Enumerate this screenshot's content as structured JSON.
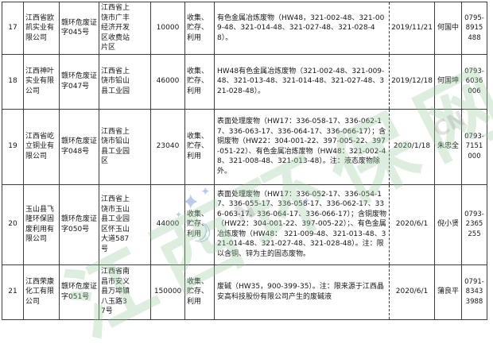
{
  "table": {
    "rows": [
      {
        "no": "17",
        "company": "江西省欧凯实业有限公司",
        "permit": "赣环危废证字045号",
        "address": "江西省上饶市广丰经济开发区收费站片区",
        "quantity": "10000",
        "operation": "收集、贮存、利用",
        "waste": "有色金属冶炼废物（HW48，321-002-48、321-009-48、321-014-48、321-027-48、321-028-48）。",
        "date": "2019/11/21",
        "contact": "何国中",
        "phone": "0795-8915488"
      },
      {
        "no": "18",
        "company": "江西神叶实业有限公司",
        "permit": "赣环危废证字047号",
        "address": "江西省上饶市铅山县工业园",
        "quantity": "46000",
        "operation": "收集、贮存、利用",
        "waste": "HW48有色金属冶炼废物（321-002-48、321-009-48、321-013-48、321-014-48、321-027-48、321-028-48）。",
        "date": "2019/12/18",
        "contact": "何国坤",
        "phone": "0793-6036006"
      },
      {
        "no": "19",
        "company": "江西省屹立铜业有限公司",
        "permit": "赣环危废证字048号",
        "address": "江西省上饶市铅山县工业园区",
        "quantity": "23040",
        "operation": "收集、贮存、利用",
        "waste": "表面处理废物（HW17：336-058-17、336-062-17、336-063-17、336-064-17、336-066-17）；含铜废物（HW22：304-001-22、397-005-22、397-051-22）、有色金属冶炼废物（HW48：321-002-48、321-008-48、321-013-48）。注：液态废物除外。",
        "date": "2020/1/18",
        "contact": "朱忠全",
        "phone": "0793-7151000"
      },
      {
        "no": "20",
        "company": "玉山县飞隆环保固废利用有限公司",
        "permit": "赣环危废证字050号",
        "address": "江西省上饶市玉山县工业园区怀玉山大道587号",
        "quantity": "44000",
        "operation": "收集、贮存、利用",
        "waste": "表面处理废物（HW17：336-052-17、336-054-17、336-055-17、336-058-17、336-062-17、336-063-17、336-064-17、336-066-17）；含铜废物（HW22：304-001-22、397-005-22）；、有色金属冶炼废物（HW48： 321-009-48、321-013-48、321-014-48、321-027-48、321-028-48）。注：限以含铜、锌为主的固态废物。",
        "date": "2020/6/1",
        "contact": "倪小贤",
        "phone": "0793-2365255"
      },
      {
        "no": "21",
        "company": "江西荣康化工有限公司",
        "permit": "赣环危废证字051号",
        "address": "江西省南昌市安义县万埠镇八玉路37号",
        "quantity": "150000",
        "operation": "收集、贮存、利用",
        "waste": "废碱（HW35，900-399-35）。注：限来源于江西晶安高科技股份有限公司产生的废碱液",
        "date": "2020/6/1",
        "contact": "蒲良平",
        "phone": "0791-83433988"
      }
    ]
  },
  "watermark": {
    "text": "江西环保网",
    "letters": [
      "N",
      "CN"
    ],
    "star_glyph": "✦",
    "crescent_glyph": "☽",
    "green": "#94cb98",
    "blue": "#608cd6"
  }
}
